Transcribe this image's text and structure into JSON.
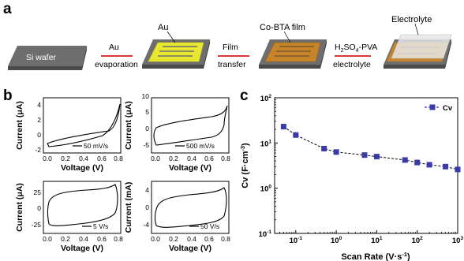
{
  "panel_a": {
    "letter": "a",
    "stages": [
      "Si wafer",
      "Au",
      "Co-BTA film",
      "Electrolyte"
    ],
    "arrows": [
      {
        "top": "Au",
        "bottom": "evaporation"
      },
      {
        "top": "Film",
        "bottom": "transfer"
      },
      {
        "top_main": "H",
        "top_sub1": "2",
        "top_mid": "SO",
        "top_sub2": "4",
        "top_end": "-PVA",
        "bottom": "electrolyte"
      }
    ]
  },
  "panel_b": {
    "letter": "b",
    "xlabel": "Voltage (V)",
    "x_ticks": [
      "0.0",
      "0.2",
      "0.4",
      "0.6",
      "0.8"
    ],
    "plots": [
      {
        "ylabel": "Current (μA)",
        "y_ticks": [
          "-2",
          "0",
          "2",
          "4"
        ],
        "ylim": [
          -2,
          5.5
        ],
        "scan_label": "50 mV/s"
      },
      {
        "ylabel": "Current (μA)",
        "y_ticks": [
          "-5",
          "0",
          "5",
          "10"
        ],
        "ylim": [
          -6,
          10
        ],
        "scan_label": "500 mV/s"
      },
      {
        "ylabel": "Current (μA)",
        "y_ticks": [
          "-25",
          "0",
          "25"
        ],
        "ylim": [
          -40,
          48
        ],
        "scan_label": "5 V/s"
      },
      {
        "ylabel": "Current (mA)",
        "y_ticks": [
          "-4",
          "0",
          "4"
        ],
        "ylim": [
          -6,
          6
        ],
        "scan_label": "50 V/s"
      }
    ]
  },
  "panel_c": {
    "letter": "c",
    "ylabel_main": "Cv (F·cm",
    "ylabel_sup": "-3",
    "ylabel_end": ")",
    "xlabel_main": "Scan Rate (V·s",
    "xlabel_sup": "-1",
    "xlabel_end": ")",
    "tick_base": "10",
    "x_tick_exps": [
      "-1",
      "0",
      "1",
      "2",
      "3"
    ],
    "y_tick_exps": [
      "-1",
      "0",
      "1",
      "2"
    ]
  },
  "chart_data": {
    "type": "line",
    "title": "",
    "xlabel": "Scan Rate (V·s-1)",
    "ylabel": "Cv (F·cm-3)",
    "x_scale": "log",
    "y_scale": "log",
    "xlim": [
      0.03,
      1000
    ],
    "ylim": [
      0.1,
      100
    ],
    "legend_position": "top-right",
    "color": "#3a3aa8",
    "series": [
      {
        "name": "Cv",
        "x": [
          0.05,
          0.1,
          0.5,
          1,
          5,
          10,
          50,
          100,
          200,
          500,
          1000
        ],
        "y": [
          23,
          15,
          7.5,
          6.3,
          5.4,
          5.0,
          4.2,
          3.7,
          3.3,
          3.0,
          2.6
        ]
      }
    ]
  }
}
